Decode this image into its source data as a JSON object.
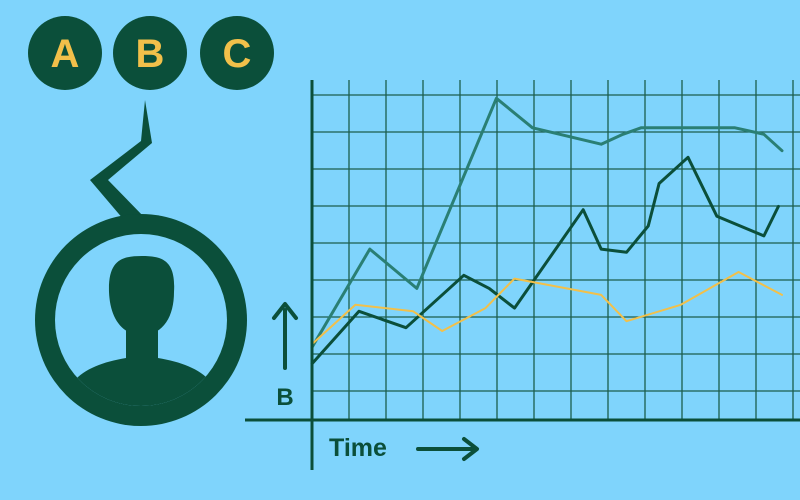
{
  "options": {
    "labels": [
      "A",
      "B",
      "C"
    ]
  },
  "colors": {
    "background": "#7fd4fc",
    "dark_green": "#0b4f3a",
    "teal": "#2a7f74",
    "gold": "#f2c04a"
  },
  "icons": {
    "user": "person-avatar-icon",
    "speech": "speech-bubble-tail"
  },
  "chart_data": {
    "type": "line",
    "xlabel": "Time",
    "ylabel": "B",
    "xlim": [
      0,
      13
    ],
    "ylim": [
      0,
      9
    ],
    "grid": true,
    "series": [
      {
        "color": "#2a7f74",
        "points": [
          [
            0,
            1.3
          ],
          [
            1.6,
            4.3
          ],
          [
            2.9,
            3.1
          ],
          [
            5.1,
            8.9
          ],
          [
            6.1,
            8.0
          ],
          [
            8.0,
            7.5
          ],
          [
            8.6,
            7.8
          ],
          [
            9.1,
            8.0
          ],
          [
            11.7,
            8.0
          ],
          [
            12.5,
            7.8
          ],
          [
            13.0,
            7.3
          ]
        ]
      },
      {
        "color": "#0b4f3a",
        "points": [
          [
            0,
            0.8
          ],
          [
            1.3,
            2.4
          ],
          [
            2.6,
            1.9
          ],
          [
            4.2,
            3.5
          ],
          [
            4.9,
            3.1
          ],
          [
            5.6,
            2.5
          ],
          [
            7.5,
            5.5
          ],
          [
            8.0,
            4.3
          ],
          [
            8.7,
            4.2
          ],
          [
            9.3,
            5.0
          ],
          [
            9.6,
            6.3
          ],
          [
            10.4,
            7.1
          ],
          [
            11.2,
            5.3
          ],
          [
            12.5,
            4.7
          ],
          [
            12.9,
            5.6
          ]
        ]
      },
      {
        "color": "#f2c04a",
        "points": [
          [
            0,
            1.4
          ],
          [
            1.2,
            2.6
          ],
          [
            2.8,
            2.4
          ],
          [
            3.6,
            1.8
          ],
          [
            4.8,
            2.5
          ],
          [
            5.6,
            3.4
          ],
          [
            8.0,
            2.9
          ],
          [
            8.7,
            2.1
          ],
          [
            10.2,
            2.6
          ],
          [
            11.8,
            3.6
          ],
          [
            13.0,
            2.9
          ]
        ]
      }
    ]
  }
}
